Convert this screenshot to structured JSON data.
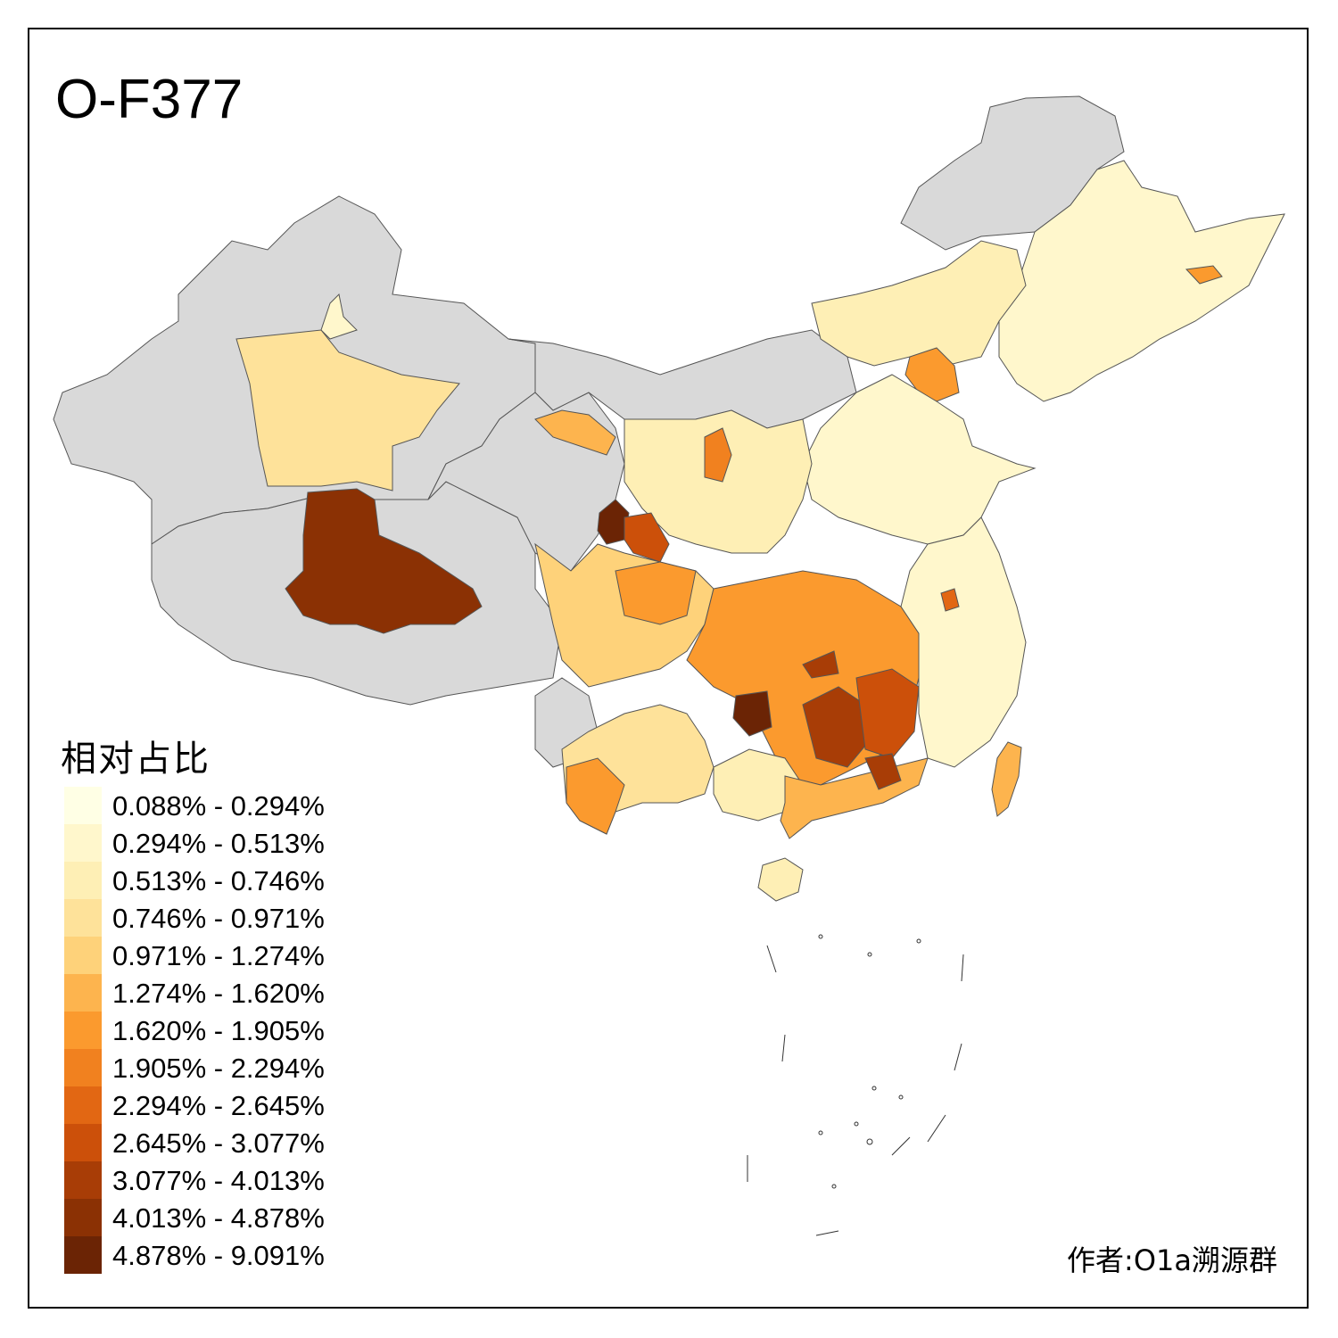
{
  "title": "O-F377",
  "legend": {
    "title": "相对占比",
    "items": [
      {
        "label": "0.088% - 0.294%",
        "color": "#FFFFE5"
      },
      {
        "label": "0.294% - 0.513%",
        "color": "#FFF7CC"
      },
      {
        "label": "0.513% - 0.746%",
        "color": "#FEEFB5"
      },
      {
        "label": "0.746% - 0.971%",
        "color": "#FEE29A"
      },
      {
        "label": "0.971% - 1.274%",
        "color": "#FED27A"
      },
      {
        "label": "1.274% - 1.620%",
        "color": "#FDB44E"
      },
      {
        "label": "1.620% - 1.905%",
        "color": "#FB9A2E"
      },
      {
        "label": "1.905% - 2.294%",
        "color": "#F1811F"
      },
      {
        "label": "2.294% - 2.645%",
        "color": "#E26713"
      },
      {
        "label": "2.645% - 3.077%",
        "color": "#CC500A"
      },
      {
        "label": "3.077% - 4.013%",
        "color": "#A83D06"
      },
      {
        "label": "4.013% - 4.878%",
        "color": "#8B3104"
      },
      {
        "label": "4.878% - 9.091%",
        "color": "#6B2405"
      }
    ]
  },
  "author": "作者:O1a溯源群",
  "colors": {
    "no_data": "#D9D9D9",
    "border": "#555555"
  }
}
